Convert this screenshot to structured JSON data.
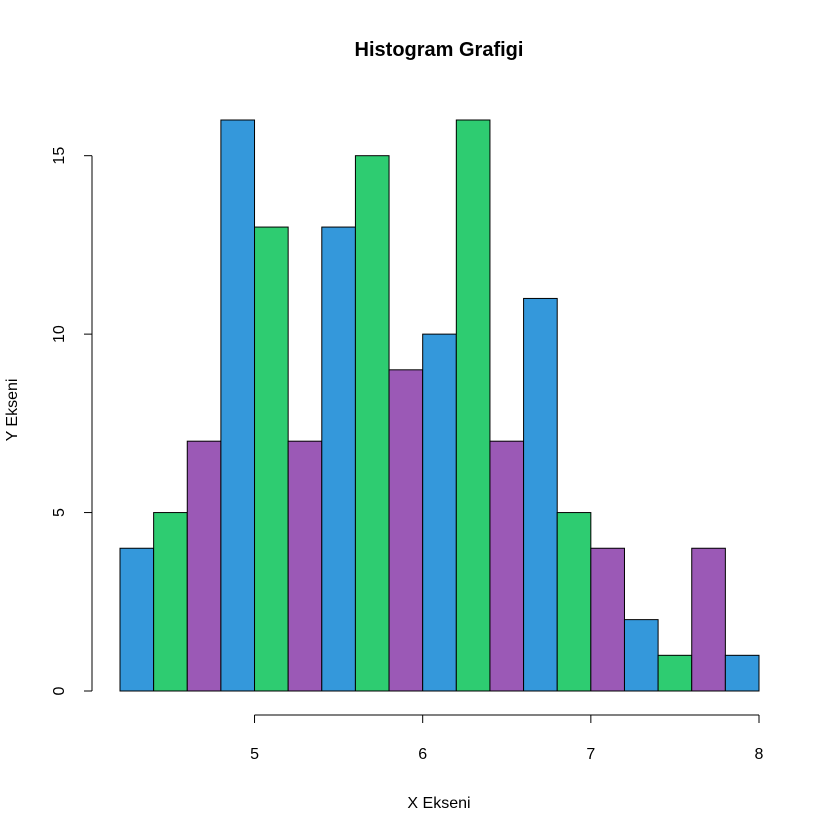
{
  "chart_data": {
    "type": "bar",
    "title": "Histogram Grafigi",
    "xlabel": "X Ekseni",
    "ylabel": "Y Ekseni",
    "bin_edges": [
      4.2,
      4.4,
      4.6,
      4.8,
      5.0,
      5.2,
      5.4,
      5.6,
      5.8,
      6.0,
      6.2,
      6.4,
      6.6,
      6.8,
      7.0,
      7.2,
      7.4,
      7.6,
      7.8,
      8.0
    ],
    "values": [
      4,
      5,
      7,
      16,
      13,
      7,
      13,
      15,
      9,
      10,
      16,
      7,
      11,
      5,
      4,
      2,
      1,
      4,
      1
    ],
    "bar_colors": [
      "#3498db",
      "#2ecc71",
      "#9b59b6"
    ],
    "x_ticks": [
      5,
      6,
      7,
      8
    ],
    "y_ticks": [
      0,
      5,
      10,
      15
    ],
    "xlim": [
      4.2,
      8.0
    ],
    "ylim": [
      0,
      16
    ],
    "grid": false,
    "legend": "none"
  }
}
